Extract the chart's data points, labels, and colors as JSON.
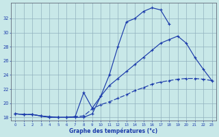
{
  "xlabel": "Graphe des températures (°c)",
  "background_color": "#c8e8e8",
  "grid_color": "#90b0be",
  "line_color": "#1a3aaa",
  "ylim": [
    17.5,
    34.2
  ],
  "yticks": [
    18,
    20,
    22,
    24,
    26,
    28,
    30,
    32
  ],
  "xlim": [
    -0.5,
    23.5
  ],
  "xticks": [
    0,
    1,
    2,
    3,
    4,
    5,
    6,
    7,
    8,
    9,
    10,
    11,
    12,
    13,
    14,
    15,
    16,
    17,
    18,
    19,
    20,
    21,
    22,
    23
  ],
  "curve1_x": [
    0,
    1,
    2,
    3,
    4,
    5,
    6,
    7,
    8,
    9,
    10,
    11,
    12,
    13,
    14,
    15,
    16,
    17,
    18
  ],
  "curve1_y": [
    18.5,
    18.4,
    18.4,
    18.2,
    18.1,
    18.0,
    18.0,
    18.0,
    18.0,
    18.5,
    21.0,
    24.0,
    28.0,
    31.5,
    32.0,
    33.0,
    33.5,
    33.2,
    31.2
  ],
  "curve2_x": [
    0,
    1,
    2,
    3,
    4,
    5,
    6,
    7,
    8,
    9,
    10,
    11,
    12,
    13,
    14,
    15,
    16,
    17,
    18,
    19,
    20,
    21,
    22,
    23
  ],
  "curve2_y": [
    18.5,
    18.4,
    18.4,
    18.2,
    18.0,
    18.0,
    18.0,
    18.1,
    21.5,
    19.3,
    21.0,
    22.5,
    23.5,
    24.5,
    25.5,
    26.5,
    27.5,
    28.5,
    29.0,
    29.5,
    28.5,
    26.5,
    24.8,
    23.2
  ],
  "curve3_x": [
    0,
    1,
    2,
    3,
    4,
    5,
    6,
    7,
    8,
    9,
    10,
    11,
    12,
    13,
    14,
    15,
    16,
    17,
    18,
    19,
    20,
    21,
    22,
    23
  ],
  "curve3_y": [
    18.5,
    18.4,
    18.4,
    18.2,
    18.0,
    18.0,
    18.0,
    18.1,
    18.2,
    19.2,
    19.8,
    20.2,
    20.7,
    21.2,
    21.8,
    22.2,
    22.7,
    23.0,
    23.2,
    23.4,
    23.5,
    23.5,
    23.4,
    23.2
  ],
  "figsize": [
    3.2,
    2.0
  ],
  "dpi": 100
}
